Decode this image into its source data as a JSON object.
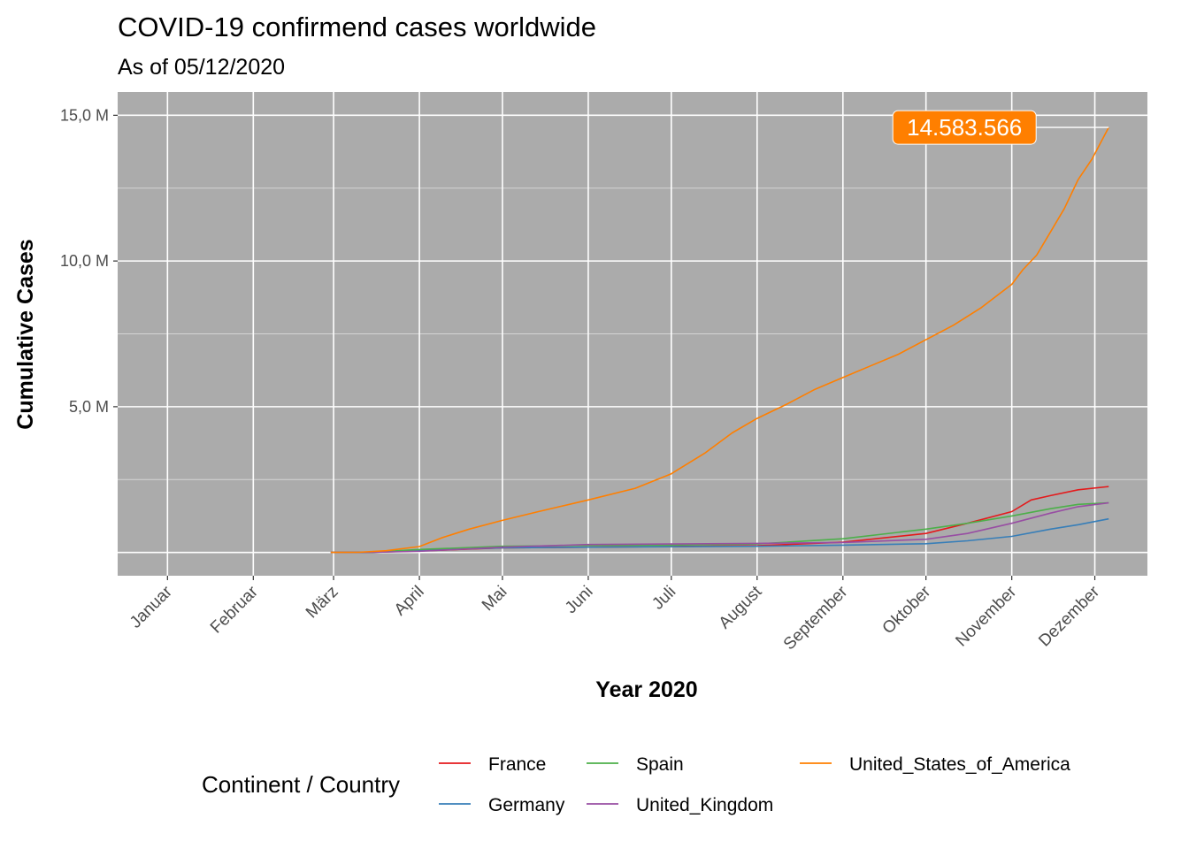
{
  "chart_data": {
    "type": "line",
    "title": "COVID-19 confirmend cases worldwide",
    "subtitle": "As of 05/12/2020",
    "xlabel": "Year 2020",
    "ylabel": "Cumulative Cases",
    "x_ticks": [
      {
        "label": "Januar",
        "day": 1
      },
      {
        "label": "Februar",
        "day": 32
      },
      {
        "label": "März",
        "day": 61
      },
      {
        "label": "April",
        "day": 92
      },
      {
        "label": "Mai",
        "day": 122
      },
      {
        "label": "Juni",
        "day": 153
      },
      {
        "label": "Juli",
        "day": 183
      },
      {
        "label": "August",
        "day": 214
      },
      {
        "label": "September",
        "day": 245
      },
      {
        "label": "Oktober",
        "day": 275
      },
      {
        "label": "November",
        "day": 306
      },
      {
        "label": "Dezember",
        "day": 336
      }
    ],
    "y_ticks": [
      {
        "label": "5,0 M",
        "value": 5000000
      },
      {
        "label": "10,0 M",
        "value": 10000000
      },
      {
        "label": "15,0 M",
        "value": 15000000
      }
    ],
    "ylim": [
      -800000,
      15800000
    ],
    "xlim": [
      -17,
      355
    ],
    "grid": true,
    "legend_title": "Continent / Country",
    "legend_position": "bottom",
    "series": [
      {
        "name": "France",
        "color": "#E41A1C",
        "points": [
          [
            60,
            0
          ],
          [
            75,
            5000
          ],
          [
            92,
            50000
          ],
          [
            122,
            160000
          ],
          [
            153,
            180000
          ],
          [
            183,
            200000
          ],
          [
            214,
            230000
          ],
          [
            245,
            350000
          ],
          [
            275,
            650000
          ],
          [
            290,
            1000000
          ],
          [
            306,
            1400000
          ],
          [
            313,
            1800000
          ],
          [
            320,
            1950000
          ],
          [
            330,
            2150000
          ],
          [
            340,
            2250000
          ],
          [
            341,
            2260000
          ]
        ]
      },
      {
        "name": "Germany",
        "color": "#377EB8",
        "points": [
          [
            60,
            0
          ],
          [
            75,
            5000
          ],
          [
            92,
            70000
          ],
          [
            122,
            160000
          ],
          [
            153,
            180000
          ],
          [
            183,
            195000
          ],
          [
            214,
            210000
          ],
          [
            245,
            250000
          ],
          [
            275,
            300000
          ],
          [
            290,
            400000
          ],
          [
            306,
            550000
          ],
          [
            320,
            800000
          ],
          [
            330,
            950000
          ],
          [
            341,
            1150000
          ]
        ]
      },
      {
        "name": "Spain",
        "color": "#4DAF4A",
        "points": [
          [
            60,
            0
          ],
          [
            75,
            8000
          ],
          [
            92,
            100000
          ],
          [
            122,
            210000
          ],
          [
            153,
            240000
          ],
          [
            183,
            250000
          ],
          [
            214,
            290000
          ],
          [
            245,
            470000
          ],
          [
            275,
            800000
          ],
          [
            290,
            1000000
          ],
          [
            306,
            1250000
          ],
          [
            320,
            1500000
          ],
          [
            330,
            1650000
          ],
          [
            341,
            1700000
          ]
        ]
      },
      {
        "name": "United_Kingdom",
        "color": "#984EA3",
        "points": [
          [
            60,
            0
          ],
          [
            75,
            3000
          ],
          [
            92,
            40000
          ],
          [
            122,
            180000
          ],
          [
            153,
            270000
          ],
          [
            183,
            290000
          ],
          [
            214,
            310000
          ],
          [
            245,
            340000
          ],
          [
            275,
            450000
          ],
          [
            290,
            650000
          ],
          [
            306,
            1000000
          ],
          [
            320,
            1350000
          ],
          [
            330,
            1570000
          ],
          [
            341,
            1700000
          ]
        ]
      },
      {
        "name": "United_States_of_America",
        "color": "#FF7F00",
        "points": [
          [
            60,
            0
          ],
          [
            70,
            5000
          ],
          [
            80,
            60000
          ],
          [
            92,
            200000
          ],
          [
            100,
            500000
          ],
          [
            110,
            800000
          ],
          [
            122,
            1100000
          ],
          [
            135,
            1400000
          ],
          [
            153,
            1800000
          ],
          [
            170,
            2200000
          ],
          [
            183,
            2700000
          ],
          [
            195,
            3400000
          ],
          [
            205,
            4100000
          ],
          [
            214,
            4600000
          ],
          [
            225,
            5100000
          ],
          [
            235,
            5600000
          ],
          [
            245,
            6000000
          ],
          [
            255,
            6400000
          ],
          [
            265,
            6800000
          ],
          [
            275,
            7300000
          ],
          [
            285,
            7800000
          ],
          [
            295,
            8400000
          ],
          [
            306,
            9200000
          ],
          [
            310,
            9700000
          ],
          [
            315,
            10200000
          ],
          [
            320,
            11000000
          ],
          [
            325,
            11800000
          ],
          [
            330,
            12800000
          ],
          [
            335,
            13500000
          ],
          [
            341,
            14583566
          ]
        ]
      }
    ],
    "annotation": {
      "label": "14.583.566",
      "series": "United_States_of_America",
      "value": 14583566,
      "day": 341,
      "color": "#FF7F00"
    }
  }
}
